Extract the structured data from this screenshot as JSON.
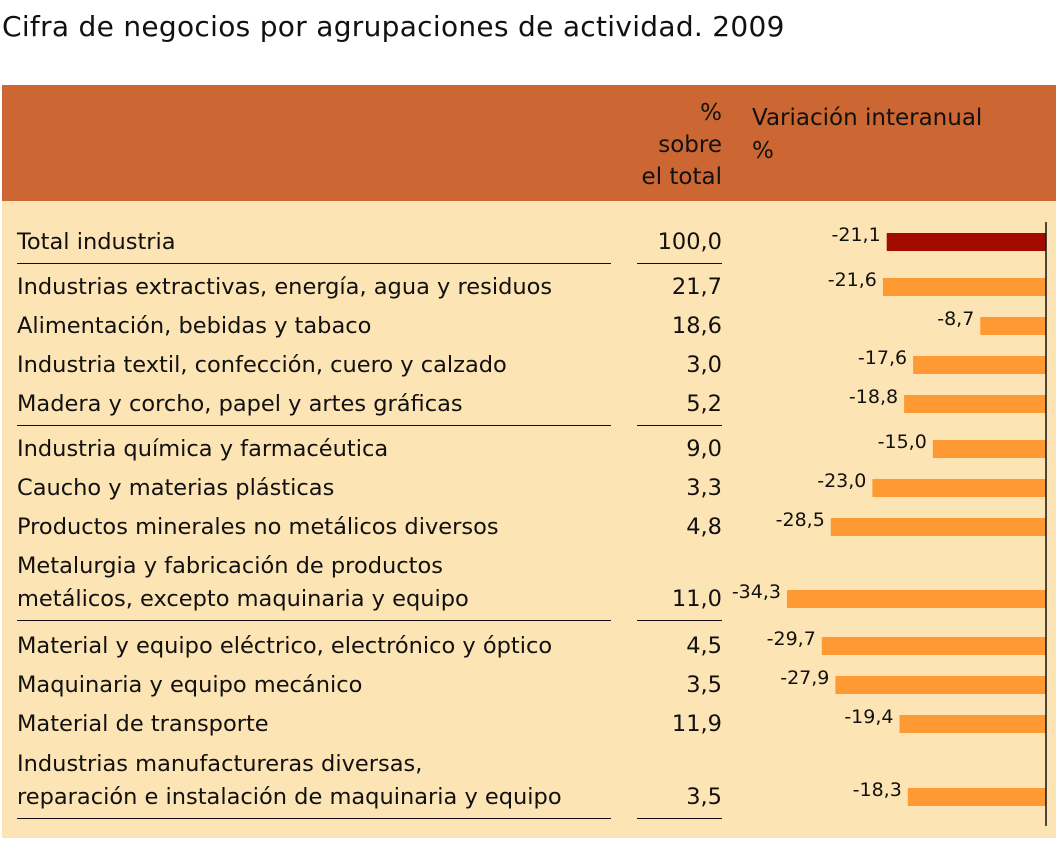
{
  "title": "Cifra de negocios por agrupaciones de actividad. 2009",
  "header": {
    "pct_lines": [
      "%",
      "sobre",
      "el total"
    ],
    "var_lines": [
      "Variación interanual",
      "%"
    ]
  },
  "colors": {
    "header_bg": "#cc6633",
    "body_bg": "#fde4b4",
    "bar_total": "#a30a00",
    "bar": "#ff9933"
  },
  "chart_data": {
    "type": "table",
    "title": "Cifra de negocios por agrupaciones de actividad. 2009",
    "columns": [
      "",
      "% sobre el total",
      "Variación interanual %"
    ],
    "xlim": [
      -34.3,
      0
    ],
    "rows": [
      {
        "lines": [
          "Total industria"
        ],
        "pct": "100,0",
        "variation": -21.1,
        "variation_label": "-21,1",
        "highlight": true
      },
      {
        "lines": [
          "Industrias extractivas, energía, agua y residuos"
        ],
        "pct": "21,7",
        "variation": -21.6,
        "variation_label": "-21,6"
      },
      {
        "lines": [
          "Alimentación, bebidas y tabaco"
        ],
        "pct": "18,6",
        "variation": -8.7,
        "variation_label": "-8,7"
      },
      {
        "lines": [
          "Industria textil, confección, cuero y calzado"
        ],
        "pct": "3,0",
        "variation": -17.6,
        "variation_label": "-17,6"
      },
      {
        "lines": [
          "Madera y corcho, papel y artes gráficas"
        ],
        "pct": "5,2",
        "variation": -18.8,
        "variation_label": "-18,8"
      },
      {
        "lines": [
          "Industria química y farmacéutica"
        ],
        "pct": "9,0",
        "variation": -15.0,
        "variation_label": "-15,0"
      },
      {
        "lines": [
          "Caucho y materias plásticas"
        ],
        "pct": "3,3",
        "variation": -23.0,
        "variation_label": "-23,0"
      },
      {
        "lines": [
          "Productos minerales no metálicos diversos"
        ],
        "pct": "4,8",
        "variation": -28.5,
        "variation_label": "-28,5"
      },
      {
        "lines": [
          "Metalurgia y fabricación de productos",
          "metálicos, excepto maquinaria y equipo"
        ],
        "pct": "11,0",
        "variation": -34.3,
        "variation_label": "-34,3"
      },
      {
        "lines": [
          "Material y equipo eléctrico, electrónico y óptico"
        ],
        "pct": "4,5",
        "variation": -29.7,
        "variation_label": "-29,7"
      },
      {
        "lines": [
          "Maquinaria y equipo mecánico"
        ],
        "pct": "3,5",
        "variation": -27.9,
        "variation_label": "-27,9"
      },
      {
        "lines": [
          "Material de transporte"
        ],
        "pct": "11,9",
        "variation": -19.4,
        "variation_label": "-19,4"
      },
      {
        "lines": [
          "Industrias manufactureras diversas,",
          "reparación e instalación de maquinaria y equipo"
        ],
        "pct": "3,5",
        "variation": -18.3,
        "variation_label": "-18,3"
      }
    ]
  }
}
